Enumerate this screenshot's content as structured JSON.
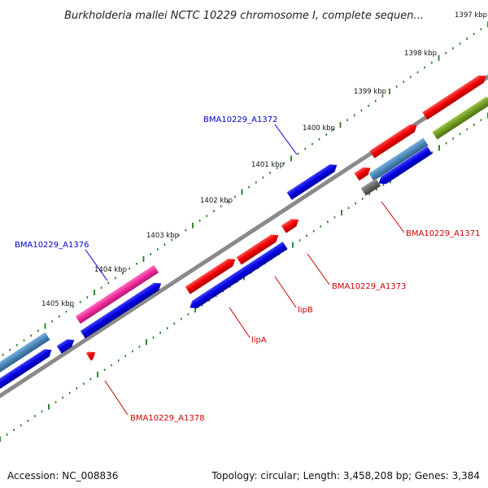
{
  "title": "Burkholderia mallei NCTC 10229 chromosome I, complete sequen...",
  "scale": {
    "ticks": [
      "1397 kbp",
      "1398 kbp",
      "1399 kbp",
      "1400 kbp",
      "1401 kbp",
      "1402 kbp",
      "1403 kbp",
      "1404 kbp",
      "1405 kbp"
    ]
  },
  "gene_labels": [
    {
      "text": "BMA10229_A1372",
      "color": "#0000cc"
    },
    {
      "text": "BMA10229_A1376",
      "color": "#0000cc"
    },
    {
      "text": "BMA10229_A1371",
      "color": "#cc0000"
    },
    {
      "text": "BMA10229_A1373",
      "color": "#cc0000"
    },
    {
      "text": "lipB",
      "color": "#cc0000"
    },
    {
      "text": "lipA",
      "color": "#cc0000"
    },
    {
      "text": "BMA10229_A1378",
      "color": "#cc0000"
    }
  ],
  "colors": {
    "backbone": "#888888",
    "tick": "#1e7a1e",
    "forward_cds": "#ee0000",
    "reverse_cds": "#0000dd",
    "pink": "#ee2a9a",
    "steelblue": "#4a86b8",
    "olive": "#6f9a22",
    "gray": "#666666"
  },
  "footer": {
    "accession": "Accession: NC_008836",
    "topology": "Topology: circular; Length: 3,458,208 bp; Genes: 3,384"
  }
}
